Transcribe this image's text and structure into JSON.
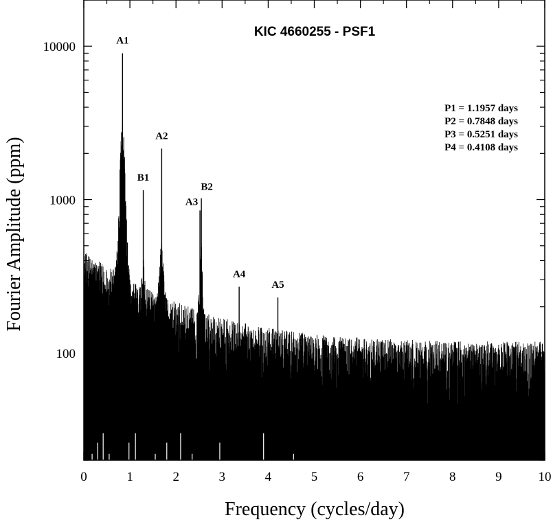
{
  "chart_data": {
    "type": "line",
    "title": "KIC 4660255 - PSF1",
    "xlabel": "Frequency (cycles/day)",
    "ylabel": "Fourier Amplitude (ppm)",
    "xlim": [
      0,
      10
    ],
    "ylim": [
      20,
      20000
    ],
    "yscale": "log",
    "grid": false,
    "x_ticks": [
      0,
      1,
      2,
      3,
      4,
      5,
      6,
      7,
      8,
      9,
      10
    ],
    "x_tick_labels": [
      "0",
      "1",
      "2",
      "3",
      "4",
      "5",
      "6",
      "7",
      "8",
      "9",
      "10"
    ],
    "y_ticks": [
      100,
      1000,
      10000
    ],
    "y_tick_labels": [
      "100",
      "1000",
      "10000"
    ],
    "peaks": [
      {
        "label": "A1",
        "x": 0.84,
        "y": 9000
      },
      {
        "label": "B1",
        "x": 1.29,
        "y": 1150
      },
      {
        "label": "A2",
        "x": 1.69,
        "y": 2150
      },
      {
        "label": "A3",
        "x": 2.52,
        "y": 850
      },
      {
        "label": "B2",
        "x": 2.55,
        "y": 1020
      },
      {
        "label": "A4",
        "x": 3.37,
        "y": 270
      },
      {
        "label": "A5",
        "x": 4.21,
        "y": 230
      }
    ],
    "annotations": [
      "P1 = 1.1957 days",
      "P2 = 0.7848 days",
      "P3 = 0.5251 days",
      "P4 = 0.4108 days"
    ]
  }
}
